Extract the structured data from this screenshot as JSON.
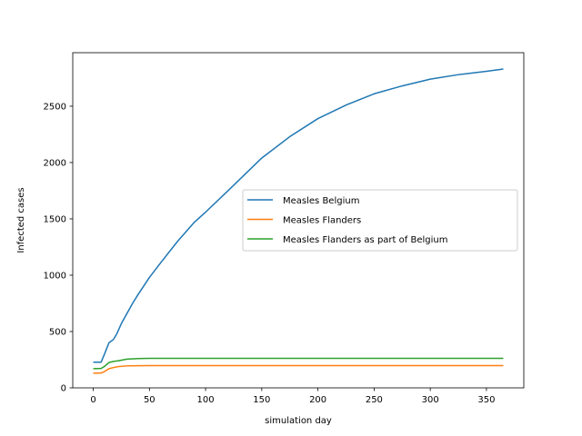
{
  "chart_data": {
    "type": "line",
    "title": "",
    "xlabel": "simulation day",
    "ylabel": "Infected cases",
    "xlim": [
      -18.25,
      383.25
    ],
    "ylim": [
      0,
      2975
    ],
    "x_ticks": [
      0,
      50,
      100,
      150,
      200,
      250,
      300,
      350
    ],
    "y_ticks": [
      0,
      500,
      1000,
      1500,
      2000,
      2500
    ],
    "x_tick_labels": [
      "0",
      "50",
      "100",
      "150",
      "200",
      "250",
      "300",
      "350"
    ],
    "y_tick_labels": [
      "0",
      "500",
      "1000",
      "1500",
      "2000",
      "2500"
    ],
    "grid": false,
    "legend_position": "center-right",
    "series": [
      {
        "name": "Measles Belgium",
        "color": "#1f77b4",
        "x": [
          0,
          7,
          10,
          14,
          18,
          21,
          25,
          30,
          35,
          40,
          50,
          60,
          75,
          90,
          100,
          120,
          150,
          175,
          200,
          225,
          250,
          275,
          300,
          325,
          350,
          365
        ],
        "values": [
          228,
          228,
          300,
          400,
          430,
          480,
          570,
          660,
          750,
          830,
          980,
          1110,
          1300,
          1470,
          1560,
          1750,
          2040,
          2230,
          2390,
          2510,
          2610,
          2680,
          2740,
          2780,
          2810,
          2830
        ]
      },
      {
        "name": "Measles Flanders",
        "color": "#ff7f0e",
        "x": [
          0,
          7,
          10,
          14,
          18,
          22,
          30,
          40,
          50,
          100,
          200,
          300,
          365
        ],
        "values": [
          130,
          132,
          145,
          170,
          180,
          188,
          195,
          197,
          198,
          198,
          198,
          198,
          198
        ]
      },
      {
        "name": "Measles Flanders as part of Belgium",
        "color": "#2ca02c",
        "x": [
          0,
          7,
          10,
          14,
          18,
          22,
          30,
          40,
          50,
          100,
          200,
          300,
          365
        ],
        "values": [
          170,
          172,
          190,
          225,
          235,
          240,
          255,
          260,
          262,
          262,
          262,
          262,
          262
        ]
      }
    ]
  }
}
